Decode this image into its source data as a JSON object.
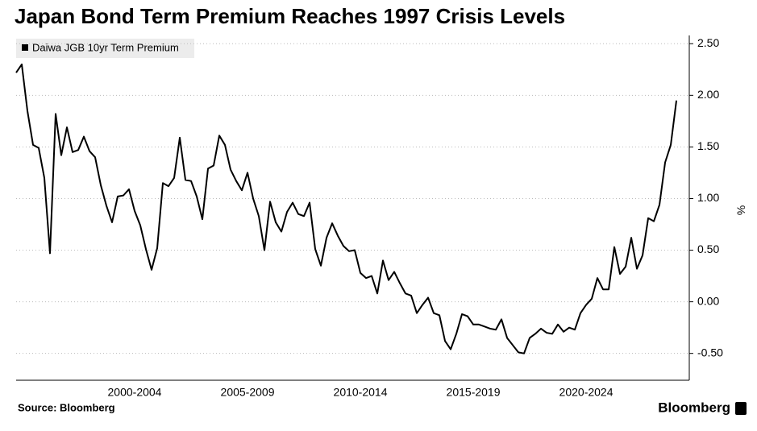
{
  "chart_data": {
    "type": "line",
    "title": "Japan Bond Term Premium Reaches 1997 Crisis Levels",
    "y_label": "%",
    "source": "Source:  Bloomberg",
    "brand": "Bloomberg",
    "legend": "top-left",
    "grid": true,
    "x": [
      1997.25,
      1997.5,
      1997.75,
      1998,
      1998.25,
      1998.5,
      1998.75,
      1999,
      1999.25,
      1999.5,
      1999.75,
      2000,
      2000.25,
      2000.5,
      2000.75,
      2001,
      2001.25,
      2001.5,
      2001.75,
      2002,
      2002.25,
      2002.5,
      2002.75,
      2003,
      2003.25,
      2003.5,
      2003.75,
      2004,
      2004.25,
      2004.5,
      2004.75,
      2005,
      2005.25,
      2005.5,
      2005.75,
      2006,
      2006.25,
      2006.5,
      2006.75,
      2007,
      2007.25,
      2007.5,
      2007.75,
      2008,
      2008.25,
      2008.5,
      2008.75,
      2009,
      2009.25,
      2009.5,
      2009.75,
      2010,
      2010.25,
      2010.5,
      2010.75,
      2011,
      2011.25,
      2011.5,
      2011.75,
      2012,
      2012.25,
      2012.5,
      2012.75,
      2013,
      2013.25,
      2013.5,
      2013.75,
      2014,
      2014.25,
      2014.5,
      2014.75,
      2015,
      2015.25,
      2015.5,
      2015.75,
      2016,
      2016.25,
      2016.5,
      2016.75,
      2017,
      2017.25,
      2017.5,
      2017.75,
      2018,
      2018.25,
      2018.5,
      2018.75,
      2019,
      2019.25,
      2019.5,
      2019.75,
      2020,
      2020.25,
      2020.5,
      2020.75,
      2021,
      2021.25,
      2021.5,
      2021.75,
      2022,
      2022.25,
      2022.5,
      2022.75,
      2023,
      2023.25,
      2023.5,
      2023.75,
      2024,
      2024.25,
      2024.5,
      2024.75,
      2025,
      2025.25,
      2025.5,
      2025.75,
      2026,
      2026.25,
      2026.5
    ],
    "series": [
      {
        "name": "Daiwa JGB 10yr Term Premium",
        "color": "#000000",
        "values": [
          2.22,
          2.3,
          1.85,
          1.52,
          1.49,
          1.2,
          0.47,
          1.82,
          1.42,
          1.69,
          1.45,
          1.47,
          1.6,
          1.46,
          1.4,
          1.13,
          0.93,
          0.77,
          1.02,
          1.03,
          1.09,
          0.88,
          0.74,
          0.51,
          0.31,
          0.52,
          1.15,
          1.12,
          1.2,
          1.59,
          1.18,
          1.17,
          1.02,
          0.8,
          1.29,
          1.32,
          1.61,
          1.52,
          1.28,
          1.17,
          1.08,
          1.25,
          1.0,
          0.83,
          0.5,
          0.97,
          0.77,
          0.68,
          0.87,
          0.96,
          0.85,
          0.83,
          0.96,
          0.51,
          0.35,
          0.62,
          0.76,
          0.64,
          0.54,
          0.49,
          0.5,
          0.28,
          0.23,
          0.25,
          0.08,
          0.4,
          0.21,
          0.29,
          0.18,
          0.08,
          0.06,
          -0.11,
          -0.03,
          0.04,
          -0.11,
          -0.13,
          -0.38,
          -0.46,
          -0.31,
          -0.12,
          -0.14,
          -0.22,
          -0.22,
          -0.24,
          -0.26,
          -0.27,
          -0.17,
          -0.35,
          -0.42,
          -0.49,
          -0.5,
          -0.35,
          -0.31,
          -0.26,
          -0.3,
          -0.31,
          -0.22,
          -0.29,
          -0.25,
          -0.27,
          -0.11,
          -0.03,
          0.03,
          0.23,
          0.12,
          0.12,
          0.53,
          0.27,
          0.34,
          0.62,
          0.32,
          0.45,
          0.81,
          0.78,
          0.94,
          1.35,
          1.52,
          1.95
        ]
      }
    ],
    "xlim": [
      1997.25,
      2027.07
    ],
    "xticks": [
      {
        "value": 2002.5,
        "label": "2000-2004"
      },
      {
        "value": 2007.5,
        "label": "2005-2009"
      },
      {
        "value": 2012.5,
        "label": "2010-2014"
      },
      {
        "value": 2017.5,
        "label": "2015-2019"
      },
      {
        "value": 2022.5,
        "label": "2020-2024"
      }
    ],
    "ylim": [
      -0.76,
      2.58
    ],
    "yticks": [
      {
        "value": -0.5,
        "label": "-0.50"
      },
      {
        "value": 0,
        "label": "0.00"
      },
      {
        "value": 0.5,
        "label": "0.50"
      },
      {
        "value": 1,
        "label": "1.00"
      },
      {
        "value": 1.5,
        "label": "1.50"
      },
      {
        "value": 2,
        "label": "2.00"
      },
      {
        "value": 2.5,
        "label": "2.50"
      }
    ]
  }
}
